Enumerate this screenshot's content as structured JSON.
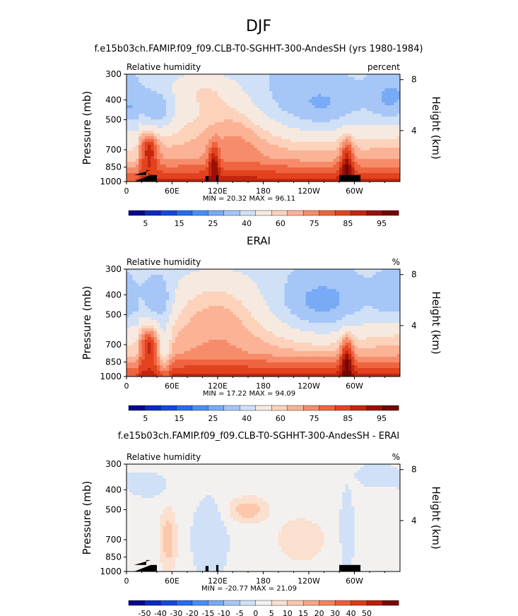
{
  "figure": {
    "title": "DJF"
  },
  "colors": {
    "abs_bar": [
      "#08088c",
      "#0b2bbf",
      "#1648de",
      "#2a6bee",
      "#4a8df4",
      "#78aaf6",
      "#a5c6f7",
      "#cfe0f7",
      "#f6e9df",
      "#fcd2bb",
      "#fbb295",
      "#f78c6b",
      "#ef6440",
      "#e2431f",
      "#c4260d",
      "#9a0f06",
      "#730404"
    ],
    "diff_bar": [
      "#08088c",
      "#0b2bbf",
      "#1648de",
      "#2a6bee",
      "#4a8df4",
      "#78aaf6",
      "#a5c6f7",
      "#cfe0f7",
      "#f3f1ef",
      "#fbe0cf",
      "#fcc7aa",
      "#f9a585",
      "#f48260",
      "#ea5c39",
      "#dc3a18",
      "#bb1f0a",
      "#7c0404"
    ],
    "terrain": "#000000"
  },
  "chart_data": [
    {
      "type": "heatmap",
      "title": "f.e15b03ch.FAMIP.f09_f09.CLB-T0-SGHHT-300-AndesSH (yrs 1980-1984)",
      "left_label": "Relative humidity",
      "right_label": "percent",
      "xlabel": "",
      "ylabel": "Pressure (mb)",
      "ylabel_right": "Height (km)",
      "x_ticks": [
        "0",
        "60E",
        "120E",
        "180",
        "120W",
        "60W"
      ],
      "x_tick_values": [
        0,
        60,
        120,
        180,
        240,
        300
      ],
      "xlim": [
        0,
        360
      ],
      "y_ticks": [
        "300",
        "400",
        "500",
        "700",
        "850",
        "1000"
      ],
      "y_tick_values": [
        300,
        400,
        500,
        700,
        850,
        1000
      ],
      "ylim": [
        300,
        1000
      ],
      "y_scale": "log",
      "height_ticks": [
        "8",
        "4"
      ],
      "height_tick_values": [
        8,
        4
      ],
      "stats": "MIN =   20.32   MAX =   96.11",
      "min": 20.32,
      "max": 96.11,
      "colorbar_labels": [
        "5",
        "15",
        "25",
        "40",
        "60",
        "75",
        "85",
        "95"
      ],
      "terrain": [
        [
          10,
          930
        ],
        [
          26,
          930
        ],
        [
          26,
          880
        ],
        [
          32,
          880
        ],
        [
          32,
          930
        ],
        [
          40,
          930
        ],
        [
          40,
          1000
        ],
        [
          10,
          1000
        ],
        [
          104,
          940
        ],
        [
          108,
          940
        ],
        [
          108,
          1000
        ],
        [
          104,
          1000
        ],
        [
          118,
          930
        ],
        [
          121,
          930
        ],
        [
          121,
          1000
        ],
        [
          118,
          1000
        ],
        [
          280,
          930
        ],
        [
          308,
          930
        ],
        [
          308,
          1000
        ],
        [
          280,
          1000
        ]
      ],
      "blobs": [
        {
          "lon": 40,
          "p": 450,
          "rx": 16,
          "ry": 0.16,
          "v": -22
        },
        {
          "lon": 258,
          "p": 430,
          "rx": 42,
          "ry": 0.22,
          "v": -24
        },
        {
          "lon": 350,
          "p": 400,
          "rx": 22,
          "ry": 0.2,
          "v": -22
        },
        {
          "lon": 185,
          "p": 420,
          "rx": 30,
          "ry": 0.3,
          "v": -8
        },
        {
          "lon": 100,
          "p": 350,
          "rx": 30,
          "ry": 0.15,
          "v": 10
        },
        {
          "lon": 150,
          "p": 550,
          "rx": 35,
          "ry": 0.3,
          "v": 10
        },
        {
          "lon": 30,
          "p": 700,
          "rx": 8,
          "ry": 0.15,
          "v": 22
        },
        {
          "lon": 290,
          "p": 800,
          "rx": 6,
          "ry": 0.2,
          "v": 22
        },
        {
          "lon": 115,
          "p": 800,
          "rx": 5,
          "ry": 0.15,
          "v": 18
        }
      ]
    },
    {
      "type": "heatmap",
      "title": "ERAI",
      "left_label": "Relative humidity",
      "right_label": "%",
      "xlabel": "",
      "ylabel": "Pressure (mb)",
      "ylabel_right": "Height (km)",
      "x_ticks": [
        "0",
        "60E",
        "120E",
        "180",
        "120W",
        "60W"
      ],
      "x_tick_values": [
        0,
        60,
        120,
        180,
        240,
        300
      ],
      "xlim": [
        0,
        360
      ],
      "y_ticks": [
        "300",
        "400",
        "500",
        "700",
        "850",
        "1000"
      ],
      "y_tick_values": [
        300,
        400,
        500,
        700,
        850,
        1000
      ],
      "ylim": [
        300,
        1000
      ],
      "y_scale": "log",
      "height_ticks": [
        "8",
        "4"
      ],
      "height_tick_values": [
        8,
        4
      ],
      "stats": "MIN =   17.22   MAX =   94.09",
      "min": 17.22,
      "max": 94.09,
      "colorbar_labels": [
        "5",
        "15",
        "25",
        "40",
        "60",
        "75",
        "85",
        "95"
      ],
      "terrain": [],
      "blobs": [
        {
          "lon": 42,
          "p": 430,
          "rx": 14,
          "ry": 0.2,
          "v": -22
        },
        {
          "lon": 258,
          "p": 450,
          "rx": 45,
          "ry": 0.25,
          "v": -28
        },
        {
          "lon": 352,
          "p": 420,
          "rx": 20,
          "ry": 0.2,
          "v": -18
        },
        {
          "lon": 50,
          "p": 750,
          "rx": 6,
          "ry": 0.25,
          "v": -14
        },
        {
          "lon": 120,
          "p": 450,
          "rx": 40,
          "ry": 0.35,
          "v": 10
        },
        {
          "lon": 30,
          "p": 700,
          "rx": 8,
          "ry": 0.15,
          "v": 20
        },
        {
          "lon": 290,
          "p": 800,
          "rx": 6,
          "ry": 0.2,
          "v": 22
        }
      ]
    },
    {
      "type": "heatmap",
      "title": "f.e15b03ch.FAMIP.f09_f09.CLB-T0-SGHHT-300-AndesSH - ERAI",
      "left_label": "Relative humidity",
      "right_label": "%",
      "xlabel": "",
      "ylabel": "Pressure (mb)",
      "ylabel_right": "Height (km)",
      "x_ticks": [
        "0",
        "60E",
        "120E",
        "180",
        "120W",
        "60W"
      ],
      "x_tick_values": [
        0,
        60,
        120,
        180,
        240,
        300
      ],
      "xlim": [
        0,
        360
      ],
      "y_ticks": [
        "300",
        "400",
        "500",
        "700",
        "850",
        "1000"
      ],
      "y_tick_values": [
        300,
        400,
        500,
        700,
        850,
        1000
      ],
      "ylim": [
        300,
        1000
      ],
      "y_scale": "log",
      "height_ticks": [
        "8",
        "4"
      ],
      "height_tick_values": [
        8,
        4
      ],
      "stats": "MIN =  -20.77   MAX =   21.09",
      "min": -20.77,
      "max": 21.09,
      "colorbar_labels": [
        "-50",
        "-40",
        "-30",
        "-20",
        "-15",
        "-10",
        "-5",
        "0",
        "5",
        "10",
        "15",
        "20",
        "30",
        "40",
        "50"
      ],
      "terrain": [
        [
          10,
          930
        ],
        [
          26,
          930
        ],
        [
          26,
          880
        ],
        [
          32,
          880
        ],
        [
          32,
          930
        ],
        [
          40,
          930
        ],
        [
          40,
          1000
        ],
        [
          10,
          1000
        ],
        [
          104,
          940
        ],
        [
          108,
          940
        ],
        [
          108,
          1000
        ],
        [
          104,
          1000
        ],
        [
          118,
          930
        ],
        [
          121,
          930
        ],
        [
          121,
          1000
        ],
        [
          118,
          1000
        ],
        [
          280,
          930
        ],
        [
          308,
          930
        ],
        [
          308,
          1000
        ],
        [
          280,
          1000
        ]
      ],
      "blobs": [
        {
          "lon": 160,
          "p": 500,
          "rx": 18,
          "ry": 0.1,
          "v": 12
        },
        {
          "lon": 55,
          "p": 700,
          "rx": 8,
          "ry": 0.25,
          "v": 12
        },
        {
          "lon": 230,
          "p": 700,
          "rx": 25,
          "ry": 0.2,
          "v": 7
        },
        {
          "lon": 110,
          "p": 700,
          "rx": 15,
          "ry": 0.3,
          "v": -6
        },
        {
          "lon": 290,
          "p": 650,
          "rx": 6,
          "ry": 0.3,
          "v": -6
        },
        {
          "lon": 30,
          "p": 380,
          "rx": 20,
          "ry": 0.1,
          "v": -4
        },
        {
          "lon": 330,
          "p": 340,
          "rx": 20,
          "ry": 0.1,
          "v": -4
        }
      ]
    }
  ]
}
